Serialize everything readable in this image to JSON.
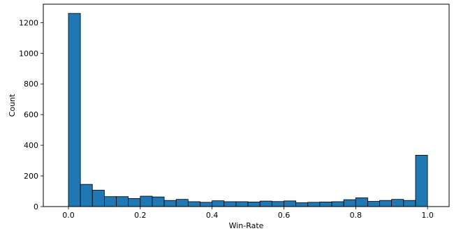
{
  "chart_data": {
    "type": "bar",
    "title": "",
    "xlabel": "Win-Rate",
    "ylabel": "Count",
    "xlim": [
      -0.07,
      1.06
    ],
    "ylim": [
      0,
      1320
    ],
    "xticks": [
      0.0,
      0.2,
      0.4,
      0.6,
      0.8,
      1.0
    ],
    "xtick_labels": [
      "0.0",
      "0.2",
      "0.4",
      "0.6",
      "0.8",
      "1.0"
    ],
    "yticks": [
      0,
      200,
      400,
      600,
      800,
      1000,
      1200
    ],
    "ytick_labels": [
      "0",
      "200",
      "400",
      "600",
      "800",
      "1000",
      "1200"
    ],
    "bin_width": 0.03333,
    "bin_edges_start": 0.0,
    "values": [
      1260,
      145,
      107,
      65,
      65,
      53,
      68,
      63,
      40,
      47,
      32,
      28,
      38,
      32,
      32,
      30,
      36,
      33,
      37,
      25,
      28,
      30,
      32,
      45,
      57,
      34,
      40,
      47,
      40,
      335
    ],
    "bar_color": "#1f77b4",
    "edge_color": "#000000",
    "grid": false,
    "legend": "none"
  }
}
